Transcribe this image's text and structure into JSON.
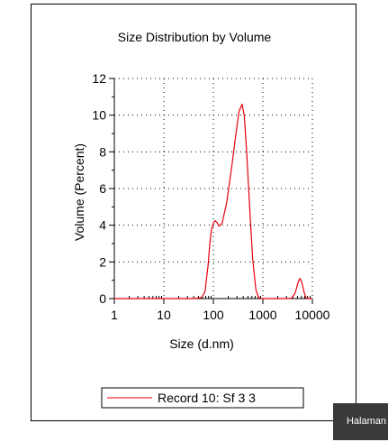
{
  "chart_data": {
    "type": "line",
    "title": "Size Distribution by Volume",
    "xlabel": "Size (d.nm)",
    "ylabel": "Volume (Percent)",
    "xscale": "log",
    "xlim": [
      1,
      10000
    ],
    "ylim": [
      0,
      12
    ],
    "x_ticks": [
      1,
      10,
      100,
      1000,
      10000
    ],
    "x_tick_labels": [
      "1",
      "10",
      "100",
      "1000",
      "10000"
    ],
    "y_ticks": [
      0,
      2,
      4,
      6,
      8,
      10,
      12
    ],
    "y_tick_labels": [
      "0",
      "2",
      "4",
      "6",
      "8",
      "10",
      "12"
    ],
    "grid": true,
    "legend_placement": "bottom",
    "series": [
      {
        "name": "Record 10: Sf 3 3",
        "color": "#e8000e",
        "x": [
          1,
          40,
          58,
          68,
          78,
          85,
          92,
          100,
          108,
          118,
          130,
          150,
          185,
          230,
          280,
          330,
          380,
          420,
          470,
          540,
          620,
          720,
          820,
          950,
          1200,
          2000,
          3000,
          3800,
          4500,
          5100,
          5600,
          6100,
          6800,
          7400,
          8000,
          10000
        ],
        "y": [
          0,
          0,
          0.05,
          0.4,
          1.8,
          3.0,
          3.8,
          4.1,
          4.25,
          4.15,
          3.95,
          4.1,
          5.2,
          7.0,
          8.8,
          10.2,
          10.6,
          10.0,
          8.0,
          5.0,
          2.2,
          0.5,
          0.05,
          0,
          0,
          0,
          0,
          0.02,
          0.3,
          0.85,
          1.1,
          0.9,
          0.35,
          0.05,
          0,
          0
        ]
      }
    ]
  },
  "ui": {
    "tooltip_text": "Halaman"
  }
}
